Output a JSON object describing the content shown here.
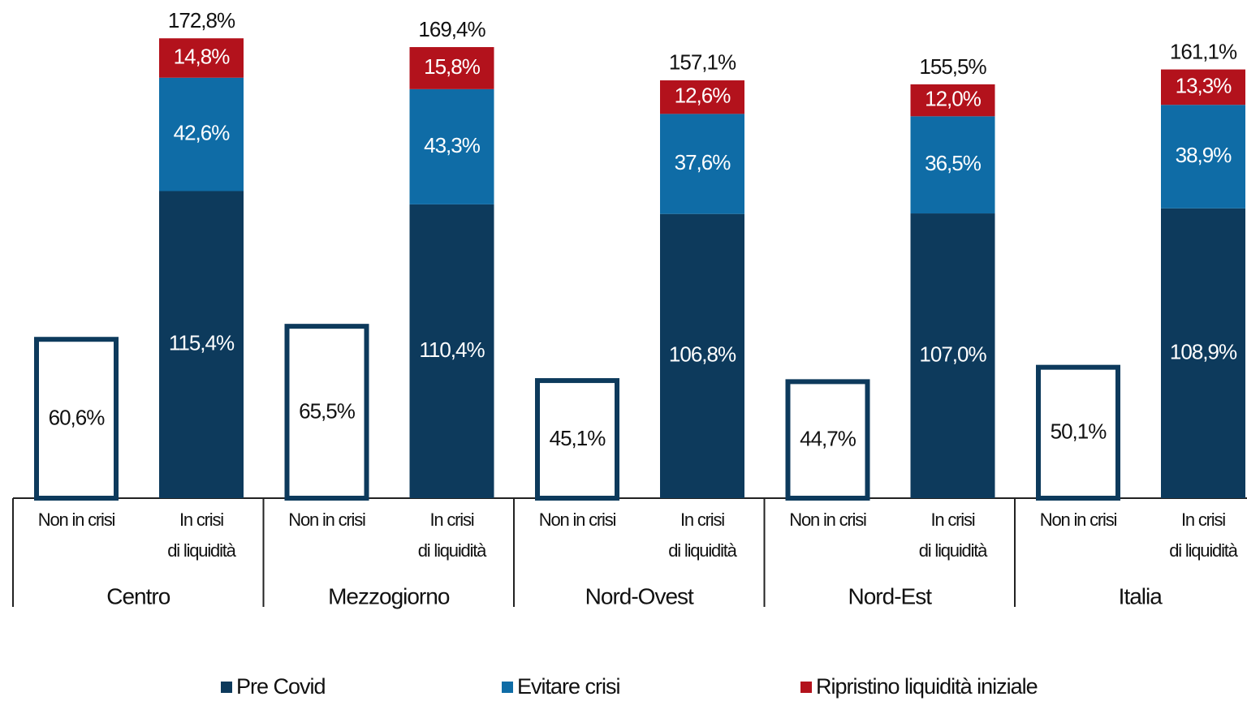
{
  "chart_data": {
    "type": "bar",
    "stacked": true,
    "groups": [
      "Centro",
      "Mezzogiorno",
      "Nord-Ovest",
      "Nord-Est",
      "Italia"
    ],
    "categories": [
      "Non in crisi",
      "In crisi\ndi liquidità",
      "Non in crisi",
      "In crisi\ndi liquidità",
      "Non in crisi",
      "In crisi\ndi liquidità",
      "Non in crisi",
      "In crisi\ndi liquidità",
      "Non in crisi",
      "In crisi\ndi liquidità"
    ],
    "series": [
      {
        "name": "Pre Covid",
        "color": "#0d3a5c",
        "values": [
          60.6,
          115.4,
          65.5,
          110.4,
          45.1,
          106.8,
          44.7,
          107.0,
          50.1,
          108.9
        ],
        "value_labels": [
          "60,6%",
          "115,4%",
          "65,5%",
          "110,4%",
          "45,1%",
          "106,8%",
          "44,7%",
          "107,0%",
          "50,1%",
          "108,9%"
        ]
      },
      {
        "name": "Evitare crisi",
        "color": "#0f6ca6",
        "values": [
          null,
          42.6,
          null,
          43.3,
          null,
          37.6,
          null,
          36.5,
          null,
          38.9
        ],
        "value_labels": [
          null,
          "42,6%",
          null,
          "43,3%",
          null,
          "37,6%",
          null,
          "36,5%",
          null,
          "38,9%"
        ]
      },
      {
        "name": "Ripristino liquidità iniziale",
        "color": "#b3121c",
        "values": [
          null,
          14.8,
          null,
          15.8,
          null,
          12.6,
          null,
          12.0,
          null,
          13.3
        ],
        "value_labels": [
          null,
          "14,8%",
          null,
          "15,8%",
          null,
          "12,6%",
          null,
          "12,0%",
          null,
          "13,3%"
        ]
      }
    ],
    "totals": [
      null,
      172.8,
      null,
      169.4,
      null,
      157.1,
      null,
      155.5,
      null,
      161.1
    ],
    "total_labels": [
      null,
      "172,8%",
      null,
      "169,4%",
      null,
      "157,1%",
      null,
      "155,5%",
      null,
      "161,1%"
    ],
    "ylim": [
      0,
      175
    ],
    "legend": "bottom"
  }
}
